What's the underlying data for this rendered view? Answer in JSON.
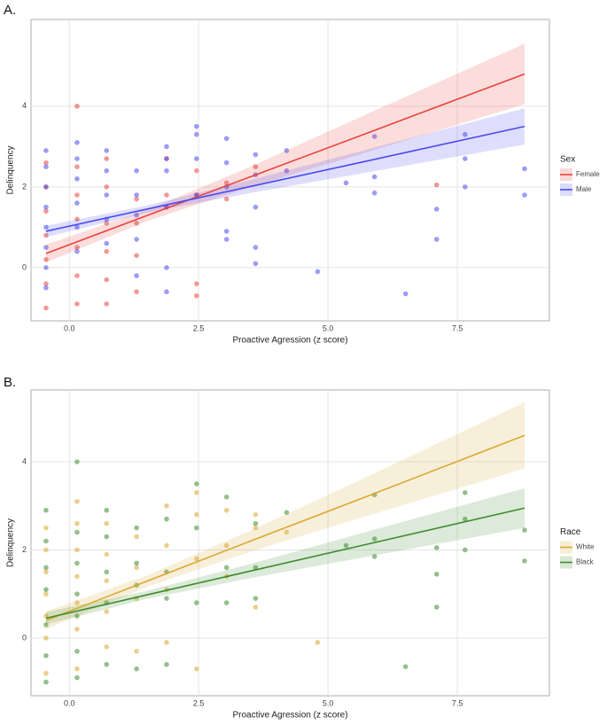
{
  "chart_data": [
    {
      "type": "scatter",
      "panel_label": "A.",
      "x_label": "Proactive Agression (z score)",
      "y_label": "Delinquency",
      "legend_title": "Sex",
      "legend_position": "right",
      "grid": true,
      "xlim": [
        -0.74,
        9.28
      ],
      "ylim": [
        -1.32,
        6.15
      ],
      "xticks": [
        {
          "value": 0,
          "label": "0.0"
        },
        2.5,
        {
          "value": 5,
          "label": "5.0"
        },
        7.5
      ],
      "yticks": [
        0,
        2,
        4
      ],
      "series": [
        {
          "name": "Female",
          "color": "#e8433f",
          "x": [
            -0.45,
            -0.45,
            -0.45,
            -0.45,
            -0.45,
            -0.45,
            -0.45,
            0.15,
            0.15,
            0.15,
            0.15,
            0.15,
            0.15,
            0.15,
            0.72,
            0.72,
            0.72,
            0.72,
            0.72,
            0.72,
            1.3,
            1.3,
            1.3,
            1.3,
            1.88,
            1.88,
            1.88,
            2.46,
            2.46,
            2.46,
            2.46,
            3.04,
            3.04,
            3.6,
            7.1
          ],
          "y": [
            2.6,
            2.0,
            1.4,
            0.8,
            0.2,
            -0.4,
            -1.0,
            4.0,
            2.5,
            1.8,
            1.2,
            0.5,
            -0.2,
            -0.9,
            2.7,
            2.0,
            1.1,
            0.4,
            -0.3,
            -0.9,
            1.7,
            1.1,
            0.3,
            -0.6,
            2.7,
            1.8,
            1.5,
            2.4,
            1.8,
            -0.4,
            -0.7,
            2.1,
            1.7,
            2.5,
            2.05
          ],
          "fit": {
            "x": [
              -0.45,
              1.5,
              3.5,
              5.5,
              8.8
            ],
            "y": [
              0.35,
              1.29,
              2.25,
              3.21,
              4.8
            ],
            "lower": [
              0.13,
              1.15,
              2.0,
              2.76,
              4.05
            ],
            "upper": [
              0.57,
              1.43,
              2.5,
              3.66,
              5.55
            ]
          }
        },
        {
          "name": "Male",
          "color": "#4a4af0",
          "x": [
            -0.45,
            -0.45,
            -0.45,
            -0.45,
            -0.45,
            -0.45,
            -0.45,
            -0.45,
            0.15,
            0.15,
            0.15,
            0.15,
            0.15,
            0.15,
            0.72,
            0.72,
            0.72,
            0.72,
            0.72,
            1.3,
            1.3,
            1.3,
            1.3,
            1.3,
            1.88,
            1.88,
            1.88,
            1.88,
            1.88,
            1.88,
            2.46,
            2.46,
            2.46,
            2.46,
            3.04,
            3.04,
            3.04,
            3.04,
            3.04,
            3.6,
            3.6,
            3.6,
            3.6,
            3.6,
            4.2,
            4.2,
            4.8,
            5.35,
            5.9,
            5.9,
            5.9,
            6.5,
            7.1,
            7.1,
            7.65,
            7.65,
            7.65,
            8.8,
            8.8
          ],
          "y": [
            2.9,
            2.5,
            2.0,
            1.5,
            1.0,
            0.5,
            0.0,
            -0.5,
            3.1,
            2.7,
            2.2,
            1.6,
            1.0,
            0.4,
            2.9,
            2.4,
            1.8,
            1.2,
            0.6,
            2.4,
            1.8,
            1.3,
            0.7,
            -0.2,
            3.0,
            2.7,
            2.4,
            1.5,
            0.0,
            -0.6,
            3.5,
            3.3,
            2.7,
            1.8,
            3.2,
            2.6,
            2.0,
            0.9,
            0.7,
            2.8,
            2.3,
            1.5,
            0.5,
            0.1,
            2.9,
            2.4,
            -0.1,
            2.1,
            3.25,
            2.25,
            1.85,
            -0.65,
            1.45,
            0.7,
            3.3,
            2.7,
            2.0,
            2.45,
            1.8
          ],
          "fit": {
            "x": [
              -0.45,
              1.5,
              3.5,
              5.5,
              8.8
            ],
            "y": [
              0.9,
              1.45,
              2.01,
              2.57,
              3.5
            ],
            "lower": [
              0.76,
              1.36,
              1.85,
              2.3,
              3.05
            ],
            "upper": [
              1.04,
              1.54,
              2.17,
              2.84,
              3.95
            ]
          }
        }
      ]
    },
    {
      "type": "scatter",
      "panel_label": "B.",
      "x_label": "Proactive Agression (z score)",
      "y_label": "Delinquency",
      "legend_title": "Race",
      "legend_position": "right",
      "grid": true,
      "xlim": [
        -0.74,
        9.28
      ],
      "ylim": [
        -1.31,
        5.63
      ],
      "xticks": [
        {
          "value": 0,
          "label": "0.0"
        },
        2.5,
        {
          "value": 5,
          "label": "5.0"
        },
        7.5
      ],
      "yticks": [
        0,
        2,
        4
      ],
      "series": [
        {
          "name": "White",
          "color": "#d9a830",
          "x": [
            -0.45,
            -0.45,
            -0.45,
            -0.45,
            -0.45,
            -0.45,
            -0.45,
            0.15,
            0.15,
            0.15,
            0.15,
            0.15,
            0.15,
            0.15,
            0.72,
            0.72,
            0.72,
            0.72,
            0.72,
            1.3,
            1.3,
            1.3,
            1.3,
            1.88,
            1.88,
            1.88,
            1.88,
            2.46,
            2.46,
            2.46,
            2.46,
            3.04,
            3.04,
            3.04,
            3.6,
            3.6,
            3.6,
            4.2,
            4.8
          ],
          "y": [
            2.5,
            2.0,
            1.5,
            1.0,
            0.5,
            0.0,
            -0.8,
            3.1,
            2.6,
            2.0,
            1.4,
            0.8,
            0.2,
            -0.7,
            2.6,
            1.9,
            1.3,
            0.6,
            -0.2,
            2.3,
            1.6,
            0.9,
            -0.3,
            3.0,
            2.1,
            1.1,
            -0.1,
            3.3,
            2.8,
            1.8,
            -0.7,
            2.9,
            2.1,
            1.4,
            2.8,
            2.5,
            0.7,
            2.4,
            -0.1
          ],
          "fit": {
            "x": [
              -0.45,
              1.5,
              3.5,
              5.5,
              8.8
            ],
            "y": [
              0.4,
              1.29,
              2.2,
              3.1,
              4.6
            ],
            "lower": [
              0.2,
              1.16,
              1.96,
              2.68,
              3.85
            ],
            "upper": [
              0.6,
              1.42,
              2.44,
              3.52,
              5.35
            ]
          }
        },
        {
          "name": "Black",
          "color": "#3d8b2e",
          "x": [
            -0.45,
            -0.45,
            -0.45,
            -0.45,
            -0.45,
            -0.45,
            -0.45,
            0.15,
            0.15,
            0.15,
            0.15,
            0.15,
            0.15,
            0.15,
            0.72,
            0.72,
            0.72,
            0.72,
            0.72,
            1.3,
            1.3,
            1.3,
            1.3,
            1.88,
            1.88,
            1.88,
            1.88,
            2.46,
            2.46,
            2.46,
            3.04,
            3.04,
            3.04,
            3.6,
            3.6,
            3.6,
            4.2,
            5.35,
            5.9,
            5.9,
            5.9,
            6.5,
            7.1,
            7.1,
            7.1,
            7.65,
            7.65,
            7.65,
            8.8,
            8.8
          ],
          "y": [
            2.9,
            2.2,
            1.6,
            1.1,
            0.3,
            -0.4,
            -1.0,
            4.0,
            2.4,
            1.7,
            1.0,
            0.5,
            -0.3,
            -0.9,
            2.9,
            2.3,
            1.5,
            0.8,
            -0.6,
            2.5,
            1.7,
            1.2,
            -0.7,
            2.7,
            1.5,
            0.9,
            -0.6,
            3.5,
            2.5,
            0.8,
            3.2,
            1.6,
            0.8,
            2.6,
            1.6,
            0.9,
            2.85,
            2.1,
            3.25,
            2.25,
            1.85,
            -0.65,
            2.05,
            1.45,
            0.7,
            3.3,
            2.7,
            2.0,
            2.45,
            1.75
          ],
          "fit": {
            "x": [
              -0.45,
              1.5,
              3.5,
              5.5,
              8.8
            ],
            "y": [
              0.45,
              0.98,
              1.52,
              2.06,
              2.95
            ],
            "lower": [
              0.31,
              0.89,
              1.36,
              1.79,
              2.5
            ],
            "upper": [
              0.59,
              1.07,
              1.68,
              2.33,
              3.4
            ]
          }
        }
      ]
    }
  ]
}
